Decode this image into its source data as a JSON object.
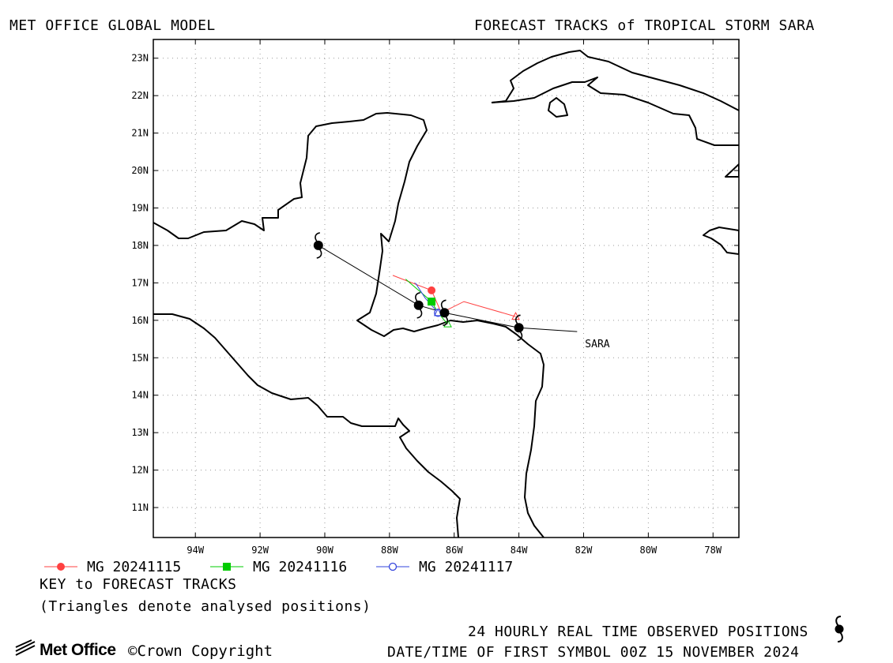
{
  "header": {
    "left_title": "MET OFFICE GLOBAL MODEL",
    "right_title": "FORECAST TRACKS of TROPICAL STORM SARA"
  },
  "map": {
    "lon_range": [
      -95.3,
      -77.2
    ],
    "lat_range": [
      10.2,
      23.5
    ],
    "grid": "dotted",
    "x_ticks": [
      "94W",
      "92W",
      "90W",
      "88W",
      "86W",
      "84W",
      "82W",
      "80W",
      "78W"
    ],
    "y_ticks": [
      "11N",
      "12N",
      "13N",
      "14N",
      "15N",
      "16N",
      "17N",
      "18N",
      "19N",
      "20N",
      "21N",
      "22N",
      "23N"
    ],
    "storm_label": "SARA",
    "colors": {
      "observed": "#000000",
      "mg_20241115": "#ff4040",
      "mg_20241116": "#00cc00",
      "mg_20241117": "#3344dd",
      "land_outline": "#000000",
      "grid": "#999999"
    }
  },
  "tracks": {
    "observed": [
      {
        "lon": -84.0,
        "lat": 15.8
      },
      {
        "lon": -86.3,
        "lat": 16.2
      },
      {
        "lon": -87.1,
        "lat": 16.4
      },
      {
        "lon": -90.2,
        "lat": 18.0
      }
    ],
    "observed_extension": [
      {
        "lon": -82.2,
        "lat": 15.7
      },
      {
        "lon": -84.0,
        "lat": 15.8
      }
    ],
    "mg_20241115": [
      {
        "lon": -84.1,
        "lat": 16.1
      },
      {
        "lon": -85.7,
        "lat": 16.5
      },
      {
        "lon": -86.4,
        "lat": 16.2
      },
      {
        "lon": -86.7,
        "lat": 16.8
      },
      {
        "lon": -87.9,
        "lat": 17.2
      }
    ],
    "mg_20241116": [
      {
        "lon": -86.2,
        "lat": 15.9
      },
      {
        "lon": -86.5,
        "lat": 16.2
      },
      {
        "lon": -86.7,
        "lat": 16.5
      },
      {
        "lon": -87.5,
        "lat": 17.1
      }
    ],
    "mg_20241117": [
      {
        "lon": -86.5,
        "lat": 16.2
      },
      {
        "lon": -86.9,
        "lat": 16.6
      },
      {
        "lon": -87.2,
        "lat": 17.0
      }
    ]
  },
  "legend": {
    "items": [
      {
        "label": "MG 20241115",
        "color": "#ff4040",
        "marker": "filled-circle"
      },
      {
        "label": "MG 20241116",
        "color": "#00cc00",
        "marker": "filled-square"
      },
      {
        "label": "MG 20241117",
        "color": "#3344dd",
        "marker": "open-circle"
      }
    ],
    "key_title": "KEY to FORECAST TRACKS",
    "triangles_note": "(Triangles denote analysed positions)"
  },
  "footer": {
    "brand": "Met Office",
    "copyright": "©Crown Copyright",
    "observed_note": "24 HOURLY REAL TIME OBSERVED POSITIONS",
    "datetime_note": "DATE/TIME OF FIRST SYMBOL 00Z 15 NOVEMBER 2024"
  }
}
